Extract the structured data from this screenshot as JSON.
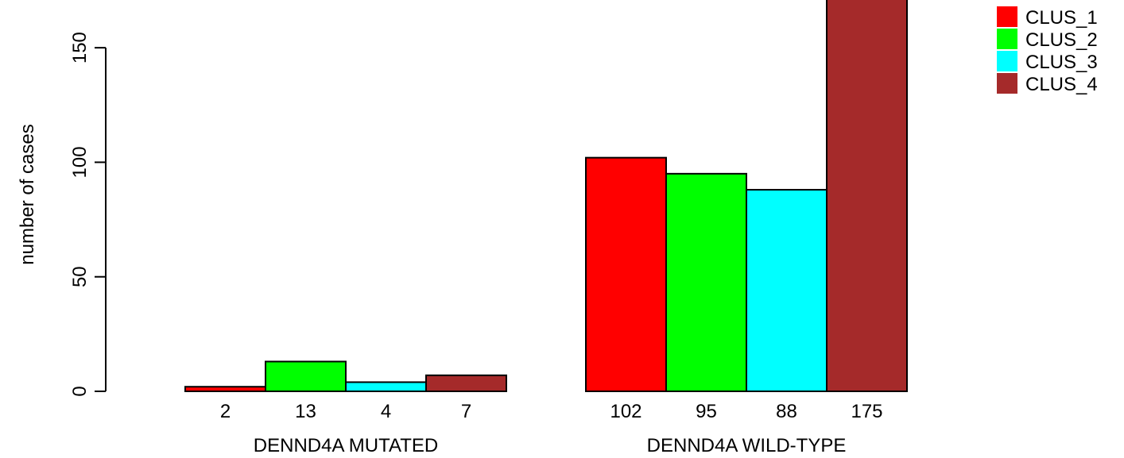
{
  "chart_data": {
    "type": "bar",
    "ylabel": "number of cases",
    "ylim": [
      0,
      175
    ],
    "yticks": [
      0,
      50,
      100,
      150
    ],
    "groups": [
      {
        "name": "DENND4A MUTATED",
        "values": [
          2,
          13,
          4,
          7
        ]
      },
      {
        "name": "DENND4A WILD-TYPE",
        "values": [
          102,
          95,
          88,
          175
        ]
      }
    ],
    "series": [
      {
        "name": "CLUS_1",
        "color": "#ff0000"
      },
      {
        "name": "CLUS_2",
        "color": "#00ff00"
      },
      {
        "name": "CLUS_3",
        "color": "#00ffff"
      },
      {
        "name": "CLUS_4",
        "color": "#a52a2a"
      }
    ],
    "legend_position": "top-right",
    "grid": false
  }
}
